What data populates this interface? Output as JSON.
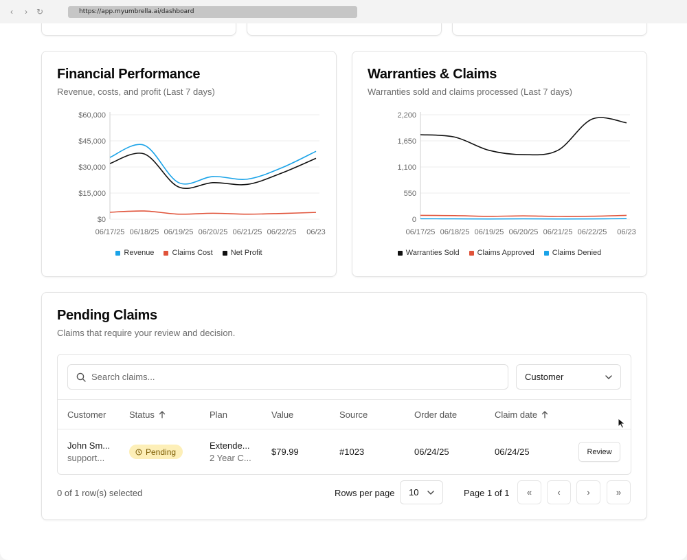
{
  "browser": {
    "back_icon": "‹",
    "forward_icon": "›",
    "reload_icon": "↻",
    "url": "https://app.myumbrella.ai/dashboard"
  },
  "financial": {
    "title": "Financial Performance",
    "subtitle": "Revenue, costs, and profit (Last 7 days)"
  },
  "warranties": {
    "title": "Warranties & Claims",
    "subtitle": "Warranties sold and claims processed (Last 7 days)"
  },
  "chart_data": [
    {
      "type": "line",
      "title": "Financial Performance",
      "subtitle": "Revenue, costs, and profit (Last 7 days)",
      "x": [
        "06/17/25",
        "06/18/25",
        "06/19/25",
        "06/20/25",
        "06/21/25",
        "06/22/25",
        "06/23/25"
      ],
      "x_tick_labels": [
        "06/17/25",
        "06/18/25",
        "06/19/25",
        "06/20/25",
        "06/21/25",
        "06/22/25",
        "06/23"
      ],
      "y_ticks": [
        0,
        15000,
        30000,
        45000,
        60000
      ],
      "y_tick_labels": [
        "$0",
        "$15,000",
        "$30,000",
        "$45,000",
        "$60,000"
      ],
      "ylim": [
        0,
        60000
      ],
      "series": [
        {
          "name": "Revenue",
          "color": "#1aa3e8",
          "values": [
            35500,
            42500,
            21000,
            24500,
            23000,
            29500,
            39000
          ]
        },
        {
          "name": "Claims Cost",
          "color": "#e0533a",
          "values": [
            4000,
            4700,
            2900,
            3400,
            2900,
            3300,
            3900
          ]
        },
        {
          "name": "Net Profit",
          "color": "#111111",
          "values": [
            32000,
            37500,
            18500,
            21000,
            20000,
            26500,
            35000
          ]
        }
      ],
      "legend": "bottom",
      "grid": true
    },
    {
      "type": "line",
      "title": "Warranties & Claims",
      "subtitle": "Warranties sold and claims processed (Last 7 days)",
      "x": [
        "06/17/25",
        "06/18/25",
        "06/19/25",
        "06/20/25",
        "06/21/25",
        "06/22/25",
        "06/23/25"
      ],
      "x_tick_labels": [
        "06/17/25",
        "06/18/25",
        "06/19/25",
        "06/20/25",
        "06/21/25",
        "06/22/25",
        "06/23"
      ],
      "y_ticks": [
        0,
        550,
        1100,
        1650,
        2200
      ],
      "y_tick_labels": [
        "0",
        "550",
        "1,100",
        "1,650",
        "2,200"
      ],
      "ylim": [
        0,
        2200
      ],
      "series": [
        {
          "name": "Warranties Sold",
          "color": "#111111",
          "values": [
            1780,
            1730,
            1450,
            1360,
            1450,
            2110,
            2030
          ]
        },
        {
          "name": "Claims Approved",
          "color": "#e0533a",
          "values": [
            80,
            75,
            60,
            70,
            58,
            62,
            80
          ]
        },
        {
          "name": "Claims Denied",
          "color": "#1aa3e8",
          "values": [
            10,
            8,
            5,
            8,
            5,
            6,
            12
          ]
        }
      ],
      "legend": "bottom",
      "grid": true
    }
  ],
  "pending": {
    "title": "Pending Claims",
    "subtitle": "Claims that require your review and decision.",
    "search_placeholder": "Search claims...",
    "filter_label": "Customer",
    "columns": {
      "customer": "Customer",
      "status": "Status",
      "plan": "Plan",
      "value": "Value",
      "source": "Source",
      "order_date": "Order date",
      "claim_date": "Claim date"
    },
    "rows": [
      {
        "customer_name": "John Sm...",
        "customer_email": "support...",
        "status": "Pending",
        "plan_name": "Extende...",
        "plan_term": "2 Year C...",
        "value": "$79.99",
        "source": "#1023",
        "order_date": "06/24/25",
        "claim_date": "06/24/25",
        "action": "Review"
      }
    ],
    "selection": "0 of 1 row(s) selected",
    "rows_per_page_label": "Rows per page",
    "rows_per_page": "10",
    "page_label": "Page 1 of 1",
    "first_icon": "«",
    "prev_icon": "‹",
    "next_icon": "›",
    "last_icon": "»"
  }
}
